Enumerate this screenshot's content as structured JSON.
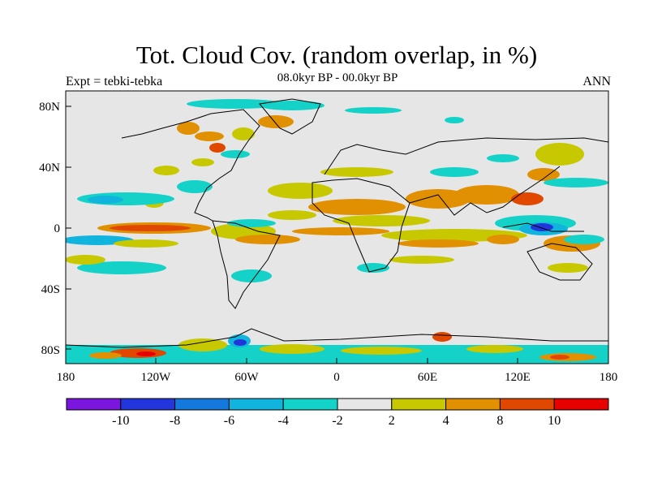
{
  "title": "Tot. Cloud Cov. (random overlap, in %)",
  "subtitle": "08.0kyr BP - 00.0kyr BP",
  "expt_label": "Expt = tebki-tebka",
  "season": "ANN",
  "lat_ticks": [
    "80N",
    "40N",
    "0",
    "40S",
    "80S"
  ],
  "lon_ticks": [
    "180",
    "120W",
    "60W",
    "0",
    "60E",
    "120E",
    "180"
  ],
  "colorbar": {
    "labels": [
      "-10",
      "-8",
      "-6",
      "-4",
      "-2",
      "2",
      "4",
      "8",
      "10"
    ],
    "colors": [
      "#7a16dd",
      "#2236dc",
      "#1478dc",
      "#10b4dc",
      "#14d2c8",
      "#e6e6e6",
      "#c8c800",
      "#e09000",
      "#e04800",
      "#e60000"
    ]
  },
  "map_colors": {
    "background": "#e6e6e6",
    "coast": "#000000"
  }
}
